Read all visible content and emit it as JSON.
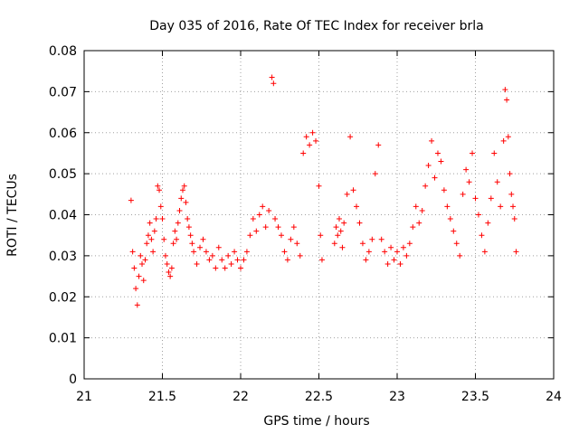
{
  "chart_data": {
    "type": "scatter",
    "title": "Day 035 of 2016, Rate Of TEC Index for receiver brla",
    "xlabel": "GPS time / hours",
    "ylabel": "ROTI / TECUs",
    "xlim": [
      21,
      24
    ],
    "ylim": [
      0,
      0.08
    ],
    "xticks": [
      "21",
      "21.5",
      "22",
      "22.5",
      "23",
      "23.5",
      "24"
    ],
    "yticks": [
      "0",
      "0.01",
      "0.02",
      "0.03",
      "0.04",
      "0.05",
      "0.06",
      "0.07",
      "0.08"
    ],
    "grid": true,
    "marker": "+",
    "color": "#ff0000",
    "series": [
      {
        "points": [
          [
            21.3,
            0.0435
          ],
          [
            21.31,
            0.031
          ],
          [
            21.32,
            0.027
          ],
          [
            21.33,
            0.022
          ],
          [
            21.34,
            0.018
          ],
          [
            21.35,
            0.025
          ],
          [
            21.36,
            0.03
          ],
          [
            21.37,
            0.028
          ],
          [
            21.38,
            0.024
          ],
          [
            21.39,
            0.029
          ],
          [
            21.4,
            0.033
          ],
          [
            21.41,
            0.035
          ],
          [
            21.42,
            0.038
          ],
          [
            21.43,
            0.034
          ],
          [
            21.44,
            0.031
          ],
          [
            21.45,
            0.036
          ],
          [
            21.46,
            0.039
          ],
          [
            21.47,
            0.047
          ],
          [
            21.48,
            0.046
          ],
          [
            21.49,
            0.042
          ],
          [
            21.5,
            0.039
          ],
          [
            21.51,
            0.034
          ],
          [
            21.52,
            0.03
          ],
          [
            21.53,
            0.028
          ],
          [
            21.54,
            0.026
          ],
          [
            21.55,
            0.025
          ],
          [
            21.56,
            0.027
          ],
          [
            21.57,
            0.033
          ],
          [
            21.58,
            0.036
          ],
          [
            21.59,
            0.034
          ],
          [
            21.6,
            0.038
          ],
          [
            21.61,
            0.041
          ],
          [
            21.62,
            0.044
          ],
          [
            21.63,
            0.046
          ],
          [
            21.64,
            0.047
          ],
          [
            21.65,
            0.043
          ],
          [
            21.66,
            0.039
          ],
          [
            21.67,
            0.037
          ],
          [
            21.68,
            0.035
          ],
          [
            21.69,
            0.033
          ],
          [
            21.7,
            0.031
          ],
          [
            21.72,
            0.028
          ],
          [
            21.74,
            0.032
          ],
          [
            21.76,
            0.034
          ],
          [
            21.78,
            0.031
          ],
          [
            21.8,
            0.029
          ],
          [
            21.82,
            0.03
          ],
          [
            21.84,
            0.027
          ],
          [
            21.86,
            0.032
          ],
          [
            21.88,
            0.029
          ],
          [
            21.9,
            0.027
          ],
          [
            21.92,
            0.03
          ],
          [
            21.94,
            0.028
          ],
          [
            21.96,
            0.031
          ],
          [
            21.98,
            0.029
          ],
          [
            22.0,
            0.027
          ],
          [
            22.02,
            0.029
          ],
          [
            22.04,
            0.031
          ],
          [
            22.06,
            0.035
          ],
          [
            22.08,
            0.039
          ],
          [
            22.1,
            0.036
          ],
          [
            22.12,
            0.04
          ],
          [
            22.14,
            0.042
          ],
          [
            22.16,
            0.037
          ],
          [
            22.18,
            0.041
          ],
          [
            22.2,
            0.0735
          ],
          [
            22.21,
            0.072
          ],
          [
            22.22,
            0.039
          ],
          [
            22.24,
            0.037
          ],
          [
            22.26,
            0.035
          ],
          [
            22.28,
            0.031
          ],
          [
            22.3,
            0.029
          ],
          [
            22.32,
            0.034
          ],
          [
            22.34,
            0.037
          ],
          [
            22.36,
            0.033
          ],
          [
            22.38,
            0.03
          ],
          [
            22.4,
            0.055
          ],
          [
            22.42,
            0.059
          ],
          [
            22.44,
            0.057
          ],
          [
            22.46,
            0.06
          ],
          [
            22.48,
            0.058
          ],
          [
            22.5,
            0.047
          ],
          [
            22.51,
            0.035
          ],
          [
            22.52,
            0.029
          ],
          [
            22.6,
            0.033
          ],
          [
            22.61,
            0.037
          ],
          [
            22.62,
            0.035
          ],
          [
            22.63,
            0.039
          ],
          [
            22.64,
            0.036
          ],
          [
            22.65,
            0.032
          ],
          [
            22.66,
            0.038
          ],
          [
            22.68,
            0.045
          ],
          [
            22.7,
            0.059
          ],
          [
            22.72,
            0.046
          ],
          [
            22.74,
            0.042
          ],
          [
            22.76,
            0.038
          ],
          [
            22.78,
            0.033
          ],
          [
            22.8,
            0.029
          ],
          [
            22.82,
            0.031
          ],
          [
            22.84,
            0.034
          ],
          [
            22.86,
            0.05
          ],
          [
            22.88,
            0.057
          ],
          [
            22.9,
            0.034
          ],
          [
            22.92,
            0.031
          ],
          [
            22.94,
            0.028
          ],
          [
            22.96,
            0.032
          ],
          [
            22.98,
            0.029
          ],
          [
            23.0,
            0.031
          ],
          [
            23.02,
            0.028
          ],
          [
            23.04,
            0.032
          ],
          [
            23.06,
            0.03
          ],
          [
            23.08,
            0.033
          ],
          [
            23.1,
            0.037
          ],
          [
            23.12,
            0.042
          ],
          [
            23.14,
            0.038
          ],
          [
            23.16,
            0.041
          ],
          [
            23.18,
            0.047
          ],
          [
            23.2,
            0.052
          ],
          [
            23.22,
            0.058
          ],
          [
            23.24,
            0.049
          ],
          [
            23.26,
            0.055
          ],
          [
            23.28,
            0.053
          ],
          [
            23.3,
            0.046
          ],
          [
            23.32,
            0.042
          ],
          [
            23.34,
            0.039
          ],
          [
            23.36,
            0.036
          ],
          [
            23.38,
            0.033
          ],
          [
            23.4,
            0.03
          ],
          [
            23.42,
            0.045
          ],
          [
            23.44,
            0.051
          ],
          [
            23.46,
            0.048
          ],
          [
            23.48,
            0.055
          ],
          [
            23.5,
            0.044
          ],
          [
            23.52,
            0.04
          ],
          [
            23.54,
            0.035
          ],
          [
            23.56,
            0.031
          ],
          [
            23.58,
            0.038
          ],
          [
            23.6,
            0.044
          ],
          [
            23.62,
            0.055
          ],
          [
            23.64,
            0.048
          ],
          [
            23.66,
            0.042
          ],
          [
            23.68,
            0.058
          ],
          [
            23.69,
            0.0705
          ],
          [
            23.7,
            0.068
          ],
          [
            23.71,
            0.059
          ],
          [
            23.72,
            0.05
          ],
          [
            23.73,
            0.045
          ],
          [
            23.74,
            0.042
          ],
          [
            23.75,
            0.039
          ],
          [
            23.76,
            0.031
          ]
        ]
      }
    ]
  }
}
